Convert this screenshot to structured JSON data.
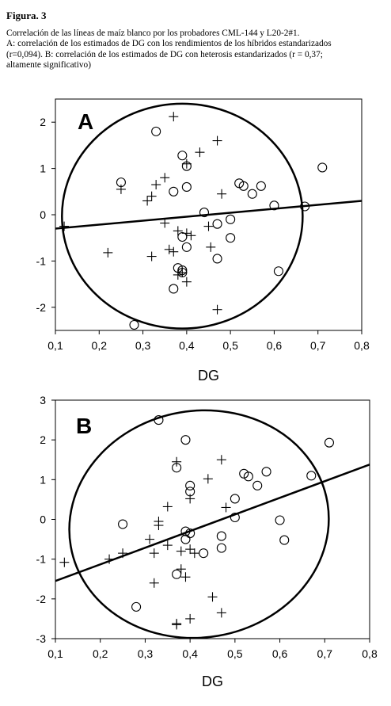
{
  "figure_label": "Figura. 3",
  "caption_lines": [
    "Correlación de las líneas de maíz blanco por los probadores CML-144 y L20-2#1.",
    "A: correlación de los estimados de DG con los rendimientos de los híbridos estandarizados",
    "(r=0,094).  B: correlación de los estimados de DG con heterosis estandarizados (r = 0,37;",
    "altamente significativo)"
  ],
  "chart_data": [
    {
      "type": "scatter",
      "panel": "A",
      "xlabel": "DG",
      "ylabel": "",
      "xlim": [
        0.1,
        0.8
      ],
      "ylim": [
        -2.5,
        2.5
      ],
      "x_ticks": [
        "0,1",
        "0,2",
        "0,3",
        "0,4",
        "0,5",
        "0,6",
        "0,7",
        "0,8"
      ],
      "y_ticks": [
        "2",
        "1",
        "0",
        "-1",
        "-2"
      ],
      "regression_line": {
        "x": [
          0.1,
          0.8
        ],
        "y": [
          -0.3,
          0.3
        ]
      },
      "ellipse": {
        "cx": 0.39,
        "cy": -0.03,
        "rx": 0.275,
        "ry": 2.43
      },
      "series": [
        {
          "marker": "circle",
          "x": [
            0.25,
            0.33,
            0.39,
            0.4,
            0.37,
            0.4,
            0.44,
            0.39,
            0.38,
            0.4,
            0.47,
            0.5,
            0.5,
            0.47,
            0.39,
            0.39,
            0.37,
            0.52,
            0.53,
            0.55,
            0.57,
            0.6,
            0.61,
            0.67,
            0.71,
            0.28
          ],
          "y": [
            0.7,
            1.8,
            1.28,
            1.05,
            0.5,
            0.6,
            0.05,
            -0.48,
            -1.15,
            -0.7,
            -0.2,
            -0.1,
            -0.5,
            -0.95,
            -1.25,
            -1.2,
            -1.6,
            0.68,
            0.62,
            0.45,
            0.62,
            0.2,
            -1.22,
            0.18,
            1.02,
            -2.38
          ]
        },
        {
          "marker": "plus",
          "x": [
            0.37,
            0.47,
            0.43,
            0.4,
            0.35,
            0.33,
            0.32,
            0.31,
            0.25,
            0.48,
            0.35,
            0.38,
            0.41,
            0.4,
            0.37,
            0.36,
            0.38,
            0.39,
            0.4,
            0.45,
            0.22,
            0.32,
            0.47,
            0.12,
            0.455
          ],
          "y": [
            2.12,
            1.6,
            1.35,
            1.1,
            0.8,
            0.65,
            0.4,
            0.3,
            0.55,
            0.45,
            -0.18,
            -0.35,
            -0.45,
            -0.4,
            -0.8,
            -0.75,
            -1.3,
            -1.25,
            -1.45,
            -0.25,
            -0.82,
            -0.9,
            -2.05,
            -0.25,
            -0.7
          ]
        }
      ]
    },
    {
      "type": "scatter",
      "panel": "B",
      "xlabel": "DG",
      "ylabel": "",
      "xlim": [
        0.1,
        0.8
      ],
      "ylim": [
        -3,
        3
      ],
      "x_ticks": [
        "0,1",
        "0,2",
        "0,3",
        "0,4",
        "0,5",
        "0,6",
        "0,7",
        "0,8"
      ],
      "y_ticks": [
        "3",
        "2",
        "1",
        "0",
        "-1",
        "-2",
        "-3"
      ],
      "regression_line": {
        "x": [
          0.1,
          0.8
        ],
        "y": [
          -1.55,
          1.38
        ]
      },
      "ellipse": {
        "cx": 0.42,
        "cy": -0.12,
        "rx": 0.29,
        "ry": 2.85,
        "rotation_deg": 28
      },
      "series": [
        {
          "marker": "circle",
          "x": [
            0.33,
            0.39,
            0.37,
            0.4,
            0.4,
            0.25,
            0.39,
            0.4,
            0.39,
            0.47,
            0.43,
            0.47,
            0.37,
            0.5,
            0.5,
            0.52,
            0.53,
            0.55,
            0.57,
            0.6,
            0.61,
            0.67,
            0.71,
            0.28
          ],
          "y": [
            2.5,
            2.0,
            1.3,
            0.85,
            0.7,
            -0.12,
            -0.3,
            -0.35,
            -0.5,
            -0.42,
            -0.85,
            -0.72,
            -1.38,
            0.52,
            0.05,
            1.15,
            1.08,
            0.85,
            1.2,
            -0.02,
            -0.52,
            1.1,
            1.93,
            -2.2
          ]
        },
        {
          "marker": "plus",
          "x": [
            0.37,
            0.47,
            0.44,
            0.4,
            0.35,
            0.33,
            0.33,
            0.31,
            0.35,
            0.32,
            0.25,
            0.22,
            0.38,
            0.4,
            0.38,
            0.41,
            0.32,
            0.39,
            0.45,
            0.47,
            0.4,
            0.37,
            0.37,
            0.12,
            0.48
          ],
          "y": [
            1.45,
            1.5,
            1.02,
            0.52,
            0.32,
            -0.05,
            -0.15,
            -0.5,
            -0.65,
            -0.85,
            -0.85,
            -1.0,
            -0.8,
            -0.75,
            -1.25,
            -0.85,
            -1.6,
            -1.45,
            -1.95,
            -2.35,
            -2.5,
            -2.62,
            -2.65,
            -1.08,
            0.3
          ]
        }
      ]
    }
  ]
}
